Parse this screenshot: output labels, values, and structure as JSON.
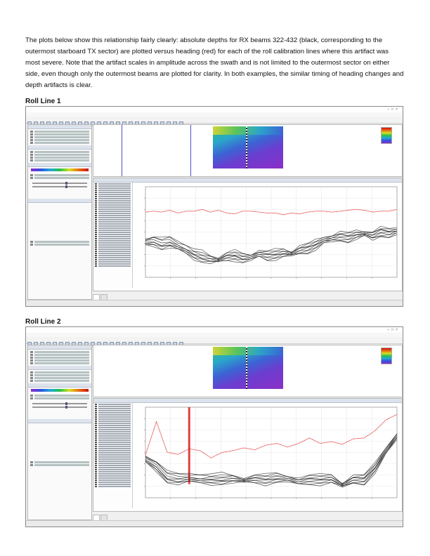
{
  "intro_text": "The plots below show this relationship fairly clearly: absolute depths for RX beams 322-432 (black, corresponding to the outermost starboard TX sector) are plotted versus heading (red) for each of the roll calibration lines where this artifact was most severe.  Note that the artifact scales in amplitude across the swath and is not limited to the outermost sector on either side, even though only the outermost beams are plotted for clarity.  In both examples, the similar timing of heading changes and depth artifacts is clear.",
  "sections": [
    {
      "title": "Roll Line 1"
    },
    {
      "title": "Roll Line 2"
    }
  ],
  "colors": {
    "depth": "#111111",
    "heading": "#e01010",
    "spike": "#e24040"
  },
  "chart_data": [
    {
      "type": "line",
      "series": [
        {
          "values": [
            72,
            73,
            72,
            74,
            71,
            73,
            73,
            75,
            72,
            74,
            71,
            70,
            73,
            73,
            72,
            71,
            71,
            69,
            71,
            70,
            72,
            73,
            73,
            72,
            73,
            74,
            75,
            74,
            72,
            73,
            73,
            75
          ]
        },
        {
          "values": [
            38,
            39,
            36,
            38,
            34,
            30,
            25,
            22,
            20,
            19,
            23,
            24,
            21,
            22,
            26,
            24,
            25,
            27,
            26,
            30,
            32,
            36,
            41,
            43,
            45,
            44,
            47,
            48,
            46,
            50,
            49,
            51
          ]
        }
      ]
    },
    {
      "type": "line",
      "series": [
        {
          "values": [
            47,
            84,
            50,
            48,
            54,
            52,
            44,
            50,
            52,
            55,
            53,
            58,
            60,
            56,
            60,
            66,
            60,
            62,
            59,
            65,
            66,
            74,
            86,
            92
          ]
        },
        {
          "values": [
            42,
            34,
            22,
            20,
            21,
            20,
            20,
            20,
            21,
            19,
            21,
            20,
            22,
            21,
            18,
            20,
            20,
            21,
            14,
            20,
            20,
            33,
            52,
            68
          ]
        }
      ]
    }
  ]
}
